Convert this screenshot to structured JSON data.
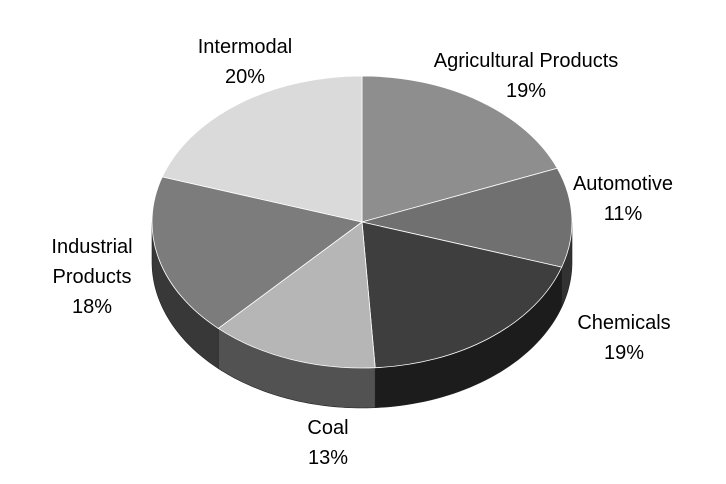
{
  "chart_data": {
    "type": "pie3d",
    "categories": [
      "Agricultural Products",
      "Automotive",
      "Chemicals",
      "Coal",
      "Industrial Products",
      "Intermodal"
    ],
    "values": [
      19,
      11,
      19,
      13,
      18,
      20
    ],
    "value_labels": [
      "19%",
      "11%",
      "19%",
      "13%",
      "18%",
      "20%"
    ],
    "colors": [
      "#8e8e8e",
      "#707070",
      "#3e3e3e",
      "#b6b6b6",
      "#7c7c7c",
      "#dadada"
    ]
  }
}
